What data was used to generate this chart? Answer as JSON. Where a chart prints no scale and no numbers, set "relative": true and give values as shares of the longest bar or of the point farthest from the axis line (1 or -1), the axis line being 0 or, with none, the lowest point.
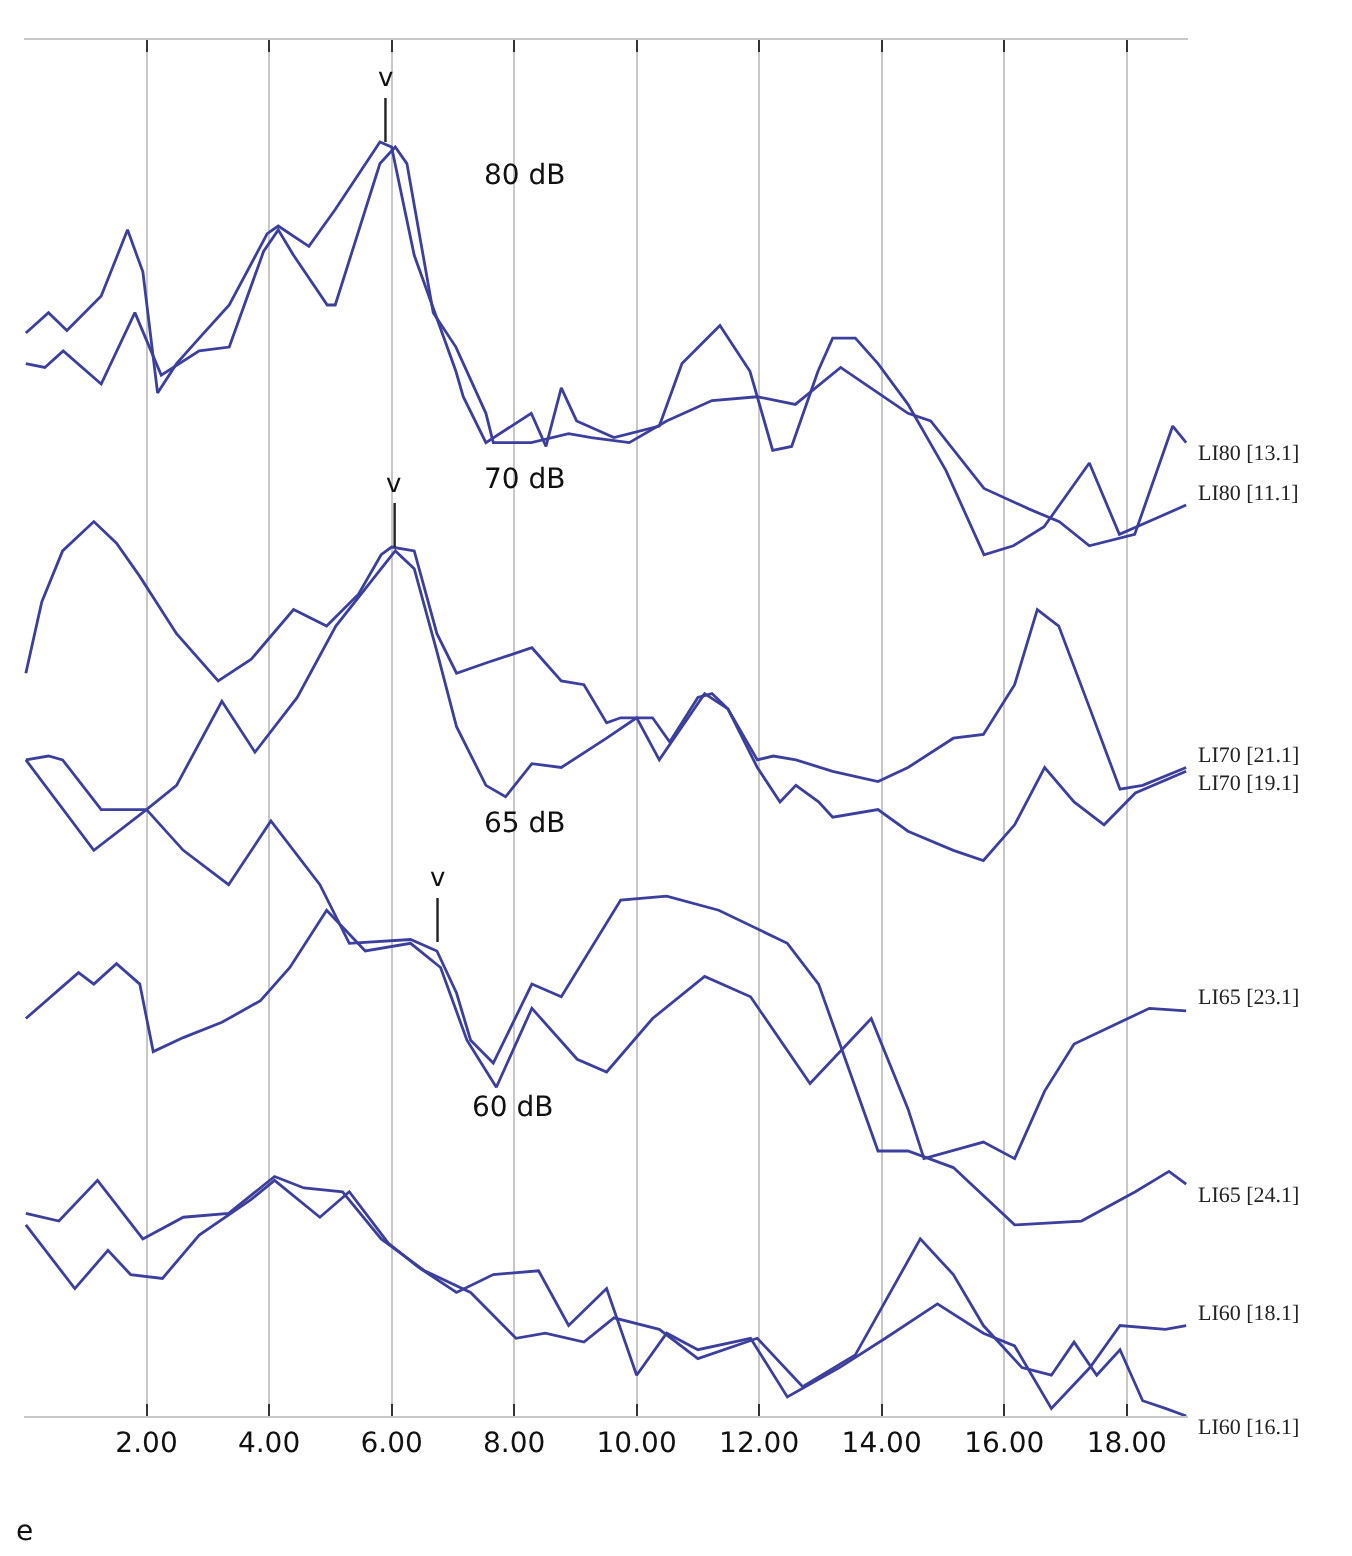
{
  "chart_data": {
    "type": "line",
    "relative": true,
    "grid": "x",
    "legend": false,
    "marker": "none",
    "line_style": "solid",
    "xlim": [
      0,
      19
    ],
    "xticks": [
      {
        "value": 2,
        "label": "2.00"
      },
      {
        "value": 4,
        "label": "4.00"
      },
      {
        "value": 6,
        "label": "6.00"
      },
      {
        "value": 8,
        "label": "8.00"
      },
      {
        "value": 10,
        "label": "10.00"
      },
      {
        "value": 12,
        "label": "12.00"
      },
      {
        "value": 14,
        "label": "14.00"
      },
      {
        "value": 16,
        "label": "16.00"
      },
      {
        "value": 18,
        "label": "18.00"
      }
    ],
    "series": [
      {
        "name": "LI80 [11.1]",
        "color": "#3c3f9c",
        "x": [
          0.03,
          0.4,
          0.7,
          1.26,
          1.69,
          1.94,
          2.18,
          2.49,
          2.86,
          3.35,
          3.97,
          4.15,
          4.65,
          5.08,
          5.81,
          6.0,
          6.37,
          7.05,
          7.17,
          7.54,
          8.28,
          8.52,
          8.77,
          9.02,
          9.63,
          10.37,
          10.74,
          11.36,
          11.85,
          12.22,
          12.53,
          12.96,
          13.2,
          13.57,
          13.94,
          14.43,
          15.05,
          15.67,
          16.15,
          16.65,
          17.39,
          17.88,
          18.5,
          18.97
        ],
        "values": [
          0.85,
          0.866,
          0.852,
          0.879,
          0.931,
          0.898,
          0.803,
          0.826,
          0.846,
          0.872,
          0.928,
          0.934,
          0.918,
          0.947,
          1.0,
          0.996,
          0.911,
          0.82,
          0.8,
          0.764,
          0.787,
          0.761,
          0.807,
          0.781,
          0.768,
          0.777,
          0.826,
          0.856,
          0.82,
          0.758,
          0.761,
          0.82,
          0.846,
          0.846,
          0.826,
          0.794,
          0.742,
          0.676,
          0.683,
          0.698,
          0.748,
          0.692,
          0.705,
          0.715
        ]
      },
      {
        "name": "LI80 [13.1]",
        "color": "#3c3f9c",
        "x": [
          0.03,
          0.34,
          0.64,
          1.26,
          1.81,
          2.24,
          2.86,
          3.35,
          3.91,
          4.15,
          4.4,
          4.95,
          5.08,
          5.81,
          6.06,
          6.25,
          6.68,
          7.05,
          7.54,
          7.66,
          8.28,
          8.89,
          9.26,
          9.88,
          10.49,
          11.23,
          11.97,
          12.59,
          13.33,
          13.82,
          14.43,
          14.8,
          15.67,
          16.4,
          16.9,
          17.39,
          18.13,
          18.75,
          18.97
        ],
        "values": [
          0.826,
          0.823,
          0.836,
          0.81,
          0.866,
          0.817,
          0.836,
          0.839,
          0.914,
          0.931,
          0.911,
          0.872,
          0.872,
          0.983,
          0.996,
          0.983,
          0.866,
          0.839,
          0.787,
          0.764,
          0.764,
          0.771,
          0.768,
          0.764,
          0.781,
          0.797,
          0.8,
          0.794,
          0.823,
          0.807,
          0.787,
          0.781,
          0.728,
          0.712,
          0.702,
          0.683,
          0.692,
          0.777,
          0.764
        ]
      },
      {
        "name": "LI70 [21.1]",
        "color": "#3c3f9c",
        "x": [
          0.03,
          0.29,
          0.63,
          1.14,
          1.51,
          1.89,
          2.49,
          3.17,
          3.71,
          4.4,
          4.94,
          5.46,
          5.83,
          6.0,
          6.37,
          6.74,
          7.06,
          7.54,
          8.29,
          8.77,
          9.14,
          9.51,
          9.74,
          10.26,
          10.54,
          11.0,
          11.23,
          11.49,
          11.97,
          12.23,
          12.6,
          13.2,
          13.94,
          14.43,
          15.17,
          15.66,
          16.17,
          16.54,
          16.89,
          17.4,
          17.89,
          18.26,
          18.97
        ],
        "values": [
          0.583,
          0.639,
          0.679,
          0.702,
          0.685,
          0.659,
          0.614,
          0.577,
          0.594,
          0.633,
          0.62,
          0.645,
          0.676,
          0.682,
          0.679,
          0.614,
          0.583,
          0.591,
          0.603,
          0.577,
          0.574,
          0.544,
          0.548,
          0.548,
          0.529,
          0.564,
          0.567,
          0.555,
          0.515,
          0.518,
          0.515,
          0.506,
          0.498,
          0.509,
          0.532,
          0.535,
          0.574,
          0.633,
          0.62,
          0.555,
          0.492,
          0.495,
          0.509
        ]
      },
      {
        "name": "LI70 [19.1]",
        "color": "#3c3f9c",
        "x": [
          0.03,
          0.4,
          0.63,
          1.26,
          2.0,
          2.49,
          3.23,
          3.77,
          4.46,
          5.09,
          5.83,
          6.06,
          6.37,
          6.74,
          7.06,
          7.54,
          7.86,
          8.29,
          8.77,
          9.51,
          10.0,
          10.37,
          10.74,
          11.11,
          11.49,
          11.97,
          12.34,
          12.6,
          12.97,
          13.2,
          13.94,
          14.43,
          15.17,
          15.66,
          16.17,
          16.66,
          17.14,
          17.63,
          18.14,
          18.97
        ],
        "values": [
          0.515,
          0.518,
          0.515,
          0.476,
          0.476,
          0.495,
          0.561,
          0.521,
          0.564,
          0.62,
          0.665,
          0.679,
          0.665,
          0.6,
          0.541,
          0.495,
          0.486,
          0.512,
          0.509,
          0.532,
          0.548,
          0.515,
          0.541,
          0.567,
          0.555,
          0.509,
          0.482,
          0.495,
          0.482,
          0.47,
          0.476,
          0.459,
          0.444,
          0.436,
          0.464,
          0.509,
          0.482,
          0.464,
          0.489,
          0.506
        ]
      },
      {
        "name": "LI65 [23.1]",
        "color": "#3c3f9c",
        "x": [
          0.03,
          0.89,
          1.14,
          1.51,
          1.89,
          2.11,
          2.6,
          3.23,
          3.86,
          4.34,
          4.94,
          5.57,
          6.31,
          6.8,
          7.23,
          7.71,
          8.29,
          9.03,
          9.51,
          10.26,
          11.11,
          11.86,
          12.83,
          13.83,
          14.43,
          14.69,
          15.66,
          16.17,
          16.66,
          17.14,
          18.37,
          18.97
        ],
        "values": [
          0.312,
          0.348,
          0.339,
          0.355,
          0.339,
          0.286,
          0.297,
          0.309,
          0.326,
          0.352,
          0.397,
          0.365,
          0.371,
          0.352,
          0.295,
          0.258,
          0.32,
          0.28,
          0.27,
          0.312,
          0.345,
          0.329,
          0.261,
          0.312,
          0.241,
          0.202,
          0.215,
          0.202,
          0.255,
          0.292,
          0.32,
          0.318
        ]
      },
      {
        "name": "LI65 [24.1]",
        "color": "#3c3f9c",
        "x": [
          0.03,
          1.14,
          2.0,
          2.6,
          3.34,
          4.03,
          4.83,
          5.31,
          6.31,
          6.74,
          7.06,
          7.29,
          7.66,
          8.29,
          8.77,
          9.74,
          10.49,
          11.34,
          12.46,
          12.97,
          13.94,
          14.43,
          15.17,
          16.17,
          17.26,
          18.14,
          18.69,
          18.97
        ],
        "values": [
          0.515,
          0.444,
          0.476,
          0.444,
          0.417,
          0.467,
          0.417,
          0.371,
          0.374,
          0.365,
          0.332,
          0.295,
          0.277,
          0.339,
          0.329,
          0.405,
          0.408,
          0.397,
          0.371,
          0.339,
          0.208,
          0.208,
          0.195,
          0.15,
          0.153,
          0.176,
          0.192,
          0.182
        ]
      },
      {
        "name": "LI60 [18.1]",
        "color": "#3c3f9c",
        "x": [
          0.03,
          0.83,
          1.37,
          1.74,
          2.26,
          2.86,
          3.71,
          4.09,
          4.83,
          5.31,
          5.94,
          6.43,
          7.06,
          7.66,
          8.4,
          8.89,
          9.51,
          10.0,
          10.49,
          11.0,
          11.86,
          12.46,
          13.31,
          14.06,
          14.91,
          15.66,
          16.17,
          16.77,
          17.4,
          17.89,
          18.63,
          18.97
        ],
        "values": [
          0.15,
          0.1,
          0.13,
          0.111,
          0.108,
          0.142,
          0.17,
          0.185,
          0.156,
          0.176,
          0.136,
          0.117,
          0.097,
          0.111,
          0.114,
          0.071,
          0.1,
          0.032,
          0.065,
          0.052,
          0.061,
          0.015,
          0.038,
          0.061,
          0.088,
          0.065,
          0.055,
          0.006,
          0.038,
          0.071,
          0.068,
          0.071
        ]
      },
      {
        "name": "LI60 [16.1]",
        "color": "#3c3f9c",
        "x": [
          0.03,
          0.57,
          1.2,
          1.94,
          2.6,
          3.34,
          4.09,
          4.57,
          5.2,
          5.83,
          6.54,
          7.29,
          8.03,
          8.51,
          9.14,
          9.63,
          10.37,
          11.0,
          11.97,
          12.71,
          13.57,
          14.63,
          15.17,
          15.66,
          16.29,
          16.77,
          17.14,
          17.51,
          17.89,
          18.26,
          18.63,
          18.97
        ],
        "values": [
          0.159,
          0.153,
          0.185,
          0.139,
          0.156,
          0.159,
          0.188,
          0.179,
          0.176,
          0.139,
          0.114,
          0.097,
          0.061,
          0.065,
          0.058,
          0.077,
          0.068,
          0.045,
          0.061,
          0.023,
          0.048,
          0.139,
          0.111,
          0.071,
          0.038,
          0.032,
          0.058,
          0.032,
          0.052,
          0.012,
          0.006,
          0.0
        ]
      }
    ],
    "annotations": [
      {
        "text": "v",
        "x": 5.9,
        "y": 1.0
      },
      "80 dB",
      {
        "text": "v",
        "x": 6.05,
        "y": 0.682
      },
      "70 dB",
      {
        "text": "v",
        "x": 6.75,
        "y": 0.372
      },
      "65 dB",
      "60 dB",
      "e"
    ]
  }
}
